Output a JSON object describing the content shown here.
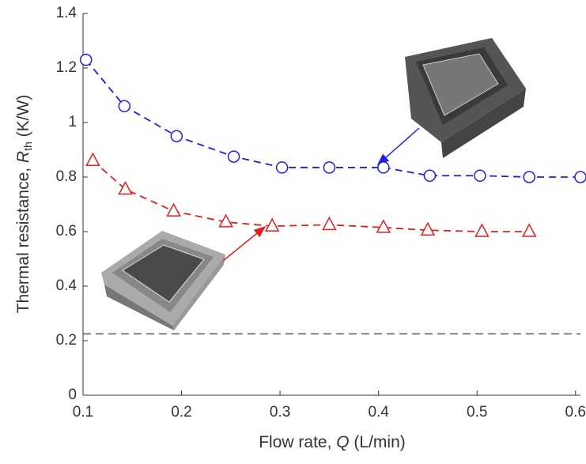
{
  "chart_data": {
    "type": "line",
    "xlabel": [
      "Flow rate, ",
      "Q",
      " (L/min)"
    ],
    "ylabel": [
      "Thermal resistance, ",
      "R",
      "th",
      " (K/W)"
    ],
    "xlim": [
      0.1,
      0.605
    ],
    "xticks": [
      0.1,
      0.2,
      0.3,
      0.4,
      0.5,
      0.6
    ],
    "ylim": [
      0,
      1.4
    ],
    "yticks": [
      0,
      0.2,
      0.4,
      0.6,
      0.8,
      1,
      1.2,
      1.4
    ],
    "reference_line": 0.225,
    "reference_color": "#555555",
    "series": [
      {
        "color": "#1f1fe0",
        "marker": "circle",
        "x": [
          0.103,
          0.142,
          0.195,
          0.253,
          0.302,
          0.35,
          0.405,
          0.452,
          0.503,
          0.553,
          0.605
        ],
        "values": [
          1.23,
          1.06,
          0.95,
          0.875,
          0.835,
          0.835,
          0.835,
          0.805,
          0.805,
          0.8,
          0.8
        ]
      },
      {
        "color": "#e02020",
        "marker": "triangle",
        "x": [
          0.11,
          0.143,
          0.192,
          0.245,
          0.292,
          0.35,
          0.405,
          0.45,
          0.505,
          0.553
        ],
        "values": [
          0.86,
          0.755,
          0.675,
          0.635,
          0.62,
          0.625,
          0.615,
          0.605,
          0.6,
          0.6
        ]
      }
    ]
  }
}
